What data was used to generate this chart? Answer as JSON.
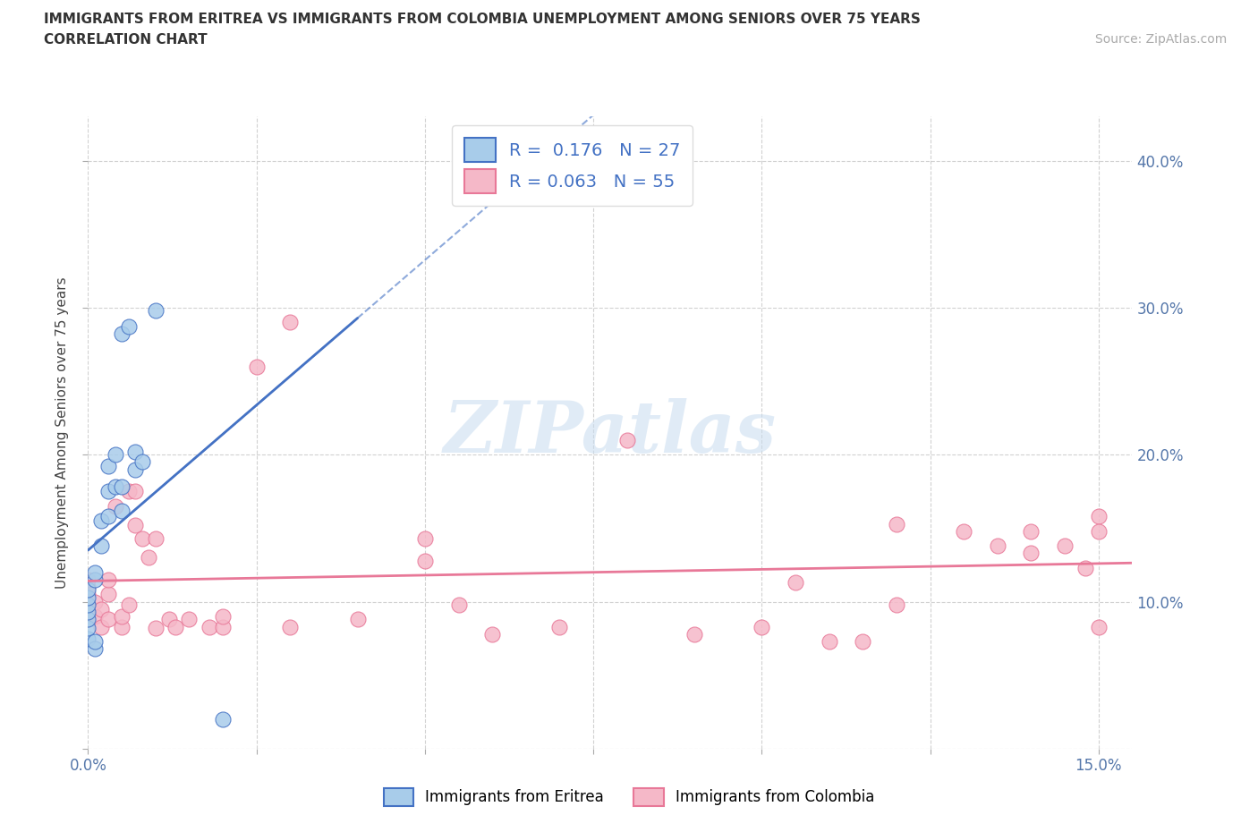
{
  "title_line1": "IMMIGRANTS FROM ERITREA VS IMMIGRANTS FROM COLOMBIA UNEMPLOYMENT AMONG SENIORS OVER 75 YEARS",
  "title_line2": "CORRELATION CHART",
  "source_text": "Source: ZipAtlas.com",
  "ylabel": "Unemployment Among Seniors over 75 years",
  "xlim": [
    0.0,
    0.155
  ],
  "ylim": [
    0.0,
    0.43
  ],
  "r_eritrea": 0.176,
  "n_eritrea": 27,
  "r_colombia": 0.063,
  "n_colombia": 55,
  "color_eritrea_fill": "#A8CCEA",
  "color_colombia_fill": "#F5B8C8",
  "color_eritrea_edge": "#4472C4",
  "color_colombia_edge": "#E87898",
  "eritrea_x": [
    0.0,
    0.0,
    0.0,
    0.0,
    0.0,
    0.0,
    0.0,
    0.001,
    0.001,
    0.001,
    0.001,
    0.002,
    0.002,
    0.003,
    0.003,
    0.003,
    0.004,
    0.004,
    0.005,
    0.005,
    0.005,
    0.006,
    0.007,
    0.007,
    0.008,
    0.01,
    0.02
  ],
  "eritrea_y": [
    0.075,
    0.082,
    0.088,
    0.093,
    0.098,
    0.103,
    0.108,
    0.068,
    0.073,
    0.115,
    0.12,
    0.138,
    0.155,
    0.158,
    0.175,
    0.192,
    0.178,
    0.2,
    0.162,
    0.178,
    0.282,
    0.287,
    0.19,
    0.202,
    0.195,
    0.298,
    0.02
  ],
  "colombia_x": [
    0.0,
    0.0,
    0.0,
    0.0,
    0.0,
    0.001,
    0.001,
    0.002,
    0.002,
    0.003,
    0.003,
    0.003,
    0.004,
    0.005,
    0.005,
    0.006,
    0.006,
    0.007,
    0.007,
    0.008,
    0.009,
    0.01,
    0.01,
    0.012,
    0.013,
    0.015,
    0.018,
    0.02,
    0.02,
    0.025,
    0.03,
    0.03,
    0.04,
    0.05,
    0.05,
    0.055,
    0.06,
    0.07,
    0.08,
    0.09,
    0.1,
    0.105,
    0.11,
    0.115,
    0.12,
    0.12,
    0.13,
    0.135,
    0.14,
    0.14,
    0.145,
    0.148,
    0.15,
    0.15,
    0.15
  ],
  "colombia_y": [
    0.088,
    0.098,
    0.105,
    0.11,
    0.115,
    0.09,
    0.1,
    0.083,
    0.095,
    0.088,
    0.105,
    0.115,
    0.165,
    0.083,
    0.09,
    0.098,
    0.175,
    0.152,
    0.175,
    0.143,
    0.13,
    0.082,
    0.143,
    0.088,
    0.083,
    0.088,
    0.083,
    0.083,
    0.09,
    0.26,
    0.083,
    0.29,
    0.088,
    0.128,
    0.143,
    0.098,
    0.078,
    0.083,
    0.21,
    0.078,
    0.083,
    0.113,
    0.073,
    0.073,
    0.098,
    0.153,
    0.148,
    0.138,
    0.148,
    0.133,
    0.138,
    0.123,
    0.158,
    0.083,
    0.148
  ]
}
